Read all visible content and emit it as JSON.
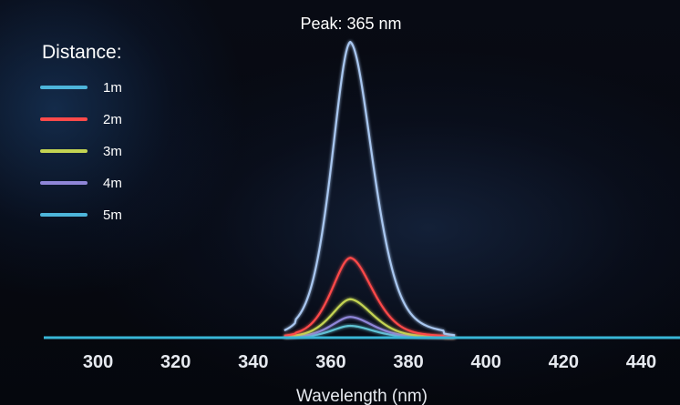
{
  "chart_data": {
    "type": "line",
    "title": "",
    "xlabel": "Wavelength (nm)",
    "ylabel": "",
    "xlim": [
      286,
      450
    ],
    "ylim": [
      0,
      100
    ],
    "x_ticks": [
      300,
      320,
      340,
      360,
      380,
      400,
      420,
      440
    ],
    "grid": false,
    "annotation": "Peak: 365 nm",
    "peak_x": 365,
    "legend": {
      "title": "Distance:",
      "placement": "top-left"
    },
    "series": [
      {
        "name": "1m",
        "peak": 100,
        "color": "#a9c7f0"
      },
      {
        "name": "2m",
        "peak": 27,
        "color": "#ff4a4a"
      },
      {
        "name": "3m",
        "peak": 13,
        "color": "#c4d452"
      },
      {
        "name": "4m",
        "peak": 7,
        "color": "#8f86d8"
      },
      {
        "name": "5m",
        "peak": 4,
        "color": "#5fc3d4"
      }
    ],
    "legend_swatch_colors": [
      "#4db5da",
      "#ff4a4a",
      "#c4d452",
      "#8f86d8",
      "#4db5da"
    ],
    "baseline_color": "#38b6d6"
  }
}
